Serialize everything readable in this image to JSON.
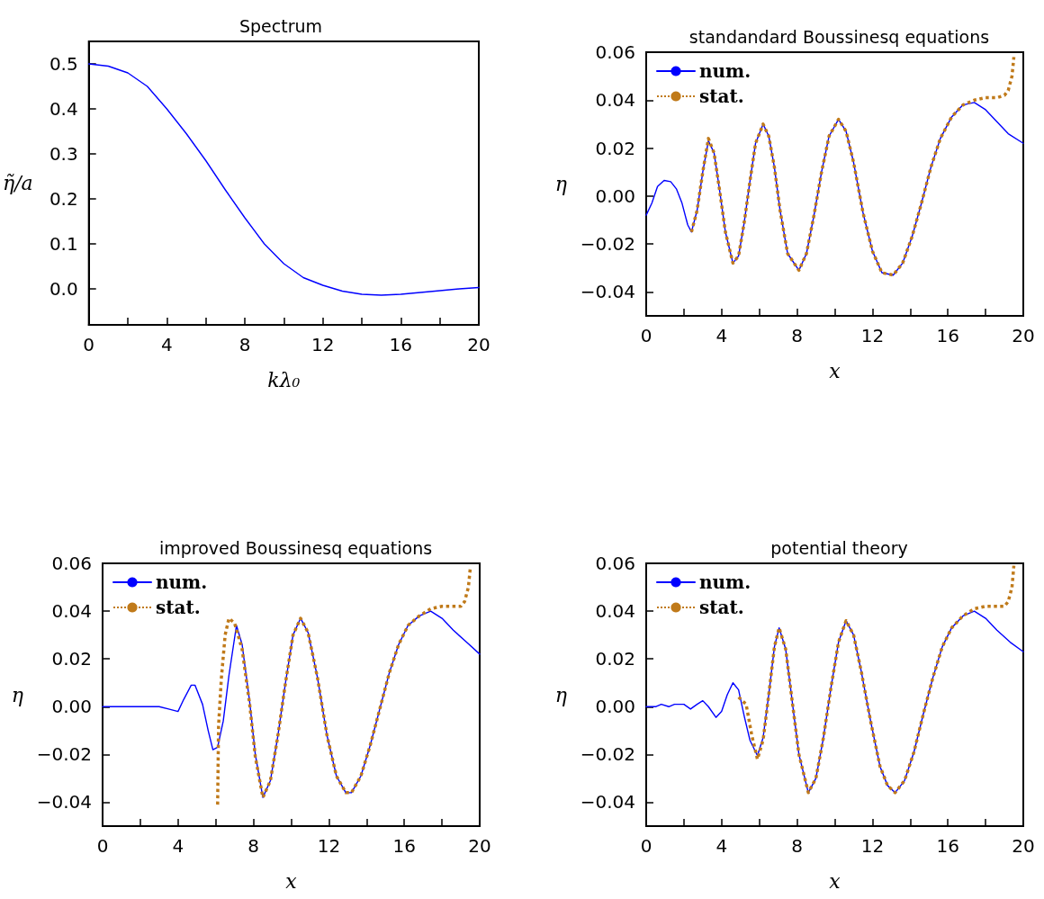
{
  "chart_data": [
    {
      "type": "line",
      "title": "Spectrum",
      "xlabel": "kλ₀",
      "ylabel": "η̃/a",
      "xlim": [
        0,
        20
      ],
      "ylim": [
        -0.08,
        0.55
      ],
      "marker": "none",
      "xticks": [
        0,
        {
          "value": 2,
          "label": null
        },
        4,
        {
          "value": 6,
          "label": null
        },
        8,
        {
          "value": 10,
          "label": null
        },
        12,
        {
          "value": 14,
          "label": null
        },
        16,
        {
          "value": 18,
          "label": null
        },
        20
      ],
      "yticks": [
        {
          "value": 0,
          "label": "0.0"
        },
        0.1,
        0.2,
        0.3,
        0.4,
        0.5
      ],
      "series": [
        {
          "color": "#0000ff",
          "line_style": "solid",
          "x": [
            0,
            1,
            2,
            3,
            4,
            5,
            6,
            7,
            8,
            9,
            10,
            11,
            12,
            13,
            14,
            15,
            16,
            17,
            18,
            19,
            20
          ],
          "values": [
            0.5,
            0.495,
            0.48,
            0.45,
            0.4,
            0.345,
            0.285,
            0.22,
            0.158,
            0.1,
            0.056,
            0.025,
            0.008,
            -0.005,
            -0.012,
            -0.014,
            -0.012,
            -0.008,
            -0.004,
            0,
            0.003
          ]
        }
      ]
    },
    {
      "type": "line",
      "title": "standandard Boussinesq equations",
      "xlabel": "x",
      "ylabel": "η",
      "xlim": [
        0,
        20
      ],
      "ylim": [
        -0.05,
        0.06
      ],
      "legend": "top left",
      "marker": "none",
      "xticks": [
        0,
        {
          "value": 2,
          "label": null
        },
        4,
        {
          "value": 6,
          "label": null
        },
        8,
        {
          "value": 10,
          "label": null
        },
        12,
        {
          "value": 14,
          "label": null
        },
        16,
        {
          "value": 18,
          "label": null
        },
        20
      ],
      "yticks": [
        {
          "value": -0.04,
          "label": "−0.04"
        },
        {
          "value": -0.02,
          "label": "−0.02"
        },
        {
          "value": 0,
          "label": "0.00"
        },
        {
          "value": 0.02,
          "label": "0.02"
        },
        {
          "value": 0.04,
          "label": "0.04"
        },
        {
          "value": 0.06,
          "label": "0.06"
        }
      ],
      "series": [
        {
          "name": "num.",
          "color": "#0000ff",
          "line_style": "solid",
          "x": [
            0,
            0.3,
            0.6,
            0.95,
            1.3,
            1.6,
            1.9,
            2.2,
            2.4,
            2.7,
            3.0,
            3.3,
            3.6,
            3.9,
            4.2,
            4.6,
            4.9,
            5.2,
            5.5,
            5.8,
            6.2,
            6.5,
            6.8,
            7.1,
            7.5,
            8.1,
            8.5,
            8.9,
            9.3,
            9.7,
            10.2,
            10.6,
            11.0,
            11.5,
            12.0,
            12.5,
            13.1,
            13.6,
            14.1,
            14.6,
            15.1,
            15.6,
            16.2,
            16.8,
            17.4,
            18.0,
            18.6,
            19.2,
            20
          ],
          "values": [
            -0.008,
            -0.003,
            0.004,
            0.0065,
            0.006,
            0.003,
            -0.003,
            -0.012,
            -0.015,
            -0.006,
            0.01,
            0.023,
            0.018,
            0.002,
            -0.015,
            -0.028,
            -0.025,
            -0.011,
            0.006,
            0.022,
            0.03,
            0.025,
            0.012,
            -0.006,
            -0.024,
            -0.031,
            -0.024,
            -0.008,
            0.01,
            0.025,
            0.032,
            0.027,
            0.014,
            -0.007,
            -0.023,
            -0.032,
            -0.033,
            -0.028,
            -0.017,
            -0.003,
            0.012,
            0.024,
            0.033,
            0.038,
            0.039,
            0.036,
            0.031,
            0.026,
            0.022
          ]
        },
        {
          "name": "stat.",
          "color": "#c07a1a",
          "line_style": "dotted",
          "x": [
            2.4,
            2.7,
            3.0,
            3.3,
            3.6,
            3.9,
            4.2,
            4.6,
            4.9,
            5.2,
            5.5,
            5.8,
            6.2,
            6.5,
            6.8,
            7.1,
            7.5,
            8.1,
            8.5,
            8.9,
            9.3,
            9.7,
            10.2,
            10.6,
            11.0,
            11.5,
            12.0,
            12.5,
            13.1,
            13.6,
            14.1,
            14.6,
            15.1,
            15.6,
            16.2,
            16.8,
            17.4,
            18.0,
            18.6,
            19.0,
            19.2,
            19.4,
            19.5
          ],
          "values": [
            -0.015,
            -0.006,
            0.01,
            0.024,
            0.018,
            0.002,
            -0.015,
            -0.028,
            -0.025,
            -0.011,
            0.006,
            0.022,
            0.03,
            0.025,
            0.012,
            -0.006,
            -0.024,
            -0.031,
            -0.024,
            -0.008,
            0.01,
            0.025,
            0.032,
            0.027,
            0.014,
            -0.007,
            -0.023,
            -0.032,
            -0.033,
            -0.028,
            -0.017,
            -0.003,
            0.012,
            0.024,
            0.033,
            0.038,
            0.04,
            0.041,
            0.041,
            0.042,
            0.044,
            0.05,
            0.058
          ]
        }
      ]
    },
    {
      "type": "line",
      "title": "improved Boussinesq equations",
      "xlabel": "x",
      "ylabel": "η",
      "xlim": [
        0,
        20
      ],
      "ylim": [
        -0.05,
        0.06
      ],
      "legend": "top left",
      "marker": "none",
      "xticks": [
        0,
        {
          "value": 2,
          "label": null
        },
        4,
        {
          "value": 6,
          "label": null
        },
        8,
        {
          "value": 10,
          "label": null
        },
        12,
        {
          "value": 14,
          "label": null
        },
        16,
        {
          "value": 18,
          "label": null
        },
        20
      ],
      "yticks": [
        {
          "value": -0.04,
          "label": "−0.04"
        },
        {
          "value": -0.02,
          "label": "−0.02"
        },
        {
          "value": 0,
          "label": "0.00"
        },
        {
          "value": 0.02,
          "label": "0.02"
        },
        {
          "value": 0.04,
          "label": "0.04"
        },
        {
          "value": 0.06,
          "label": "0.06"
        }
      ],
      "series": [
        {
          "name": "num.",
          "color": "#0000ff",
          "line_style": "solid",
          "x": [
            0,
            0.5,
            1,
            1.5,
            2,
            2.5,
            3,
            3.5,
            4.0,
            4.3,
            4.7,
            4.9,
            5.3,
            5.6,
            5.85,
            6.1,
            6.4,
            6.7,
            7.1,
            7.4,
            7.8,
            8.1,
            8.5,
            8.9,
            9.3,
            9.7,
            10.1,
            10.5,
            10.9,
            11.4,
            11.9,
            12.4,
            12.9,
            13.2,
            13.7,
            14.2,
            14.7,
            15.2,
            15.7,
            16.2,
            16.8,
            17.4,
            18.0,
            18.6,
            19.3,
            20
          ],
          "values": [
            0,
            0,
            0,
            0,
            0,
            0,
            0,
            -0.001,
            -0.002,
            0.003,
            0.009,
            0.009,
            0.001,
            -0.01,
            -0.018,
            -0.017,
            -0.006,
            0.013,
            0.034,
            0.026,
            0.002,
            -0.02,
            -0.038,
            -0.031,
            -0.012,
            0.01,
            0.03,
            0.037,
            0.031,
            0.012,
            -0.012,
            -0.029,
            -0.036,
            -0.036,
            -0.029,
            -0.016,
            -0.001,
            0.014,
            0.026,
            0.034,
            0.038,
            0.04,
            0.037,
            0.032,
            0.027,
            0.022
          ]
        },
        {
          "name": "stat.",
          "color": "#c07a1a",
          "line_style": "dotted",
          "x": [
            6.1,
            6.15,
            6.3,
            6.5,
            6.7,
            7.0,
            7.4,
            7.8,
            8.1,
            8.5,
            8.9,
            9.3,
            9.7,
            10.1,
            10.5,
            10.9,
            11.4,
            11.9,
            12.4,
            12.9,
            13.2,
            13.7,
            14.2,
            14.7,
            15.2,
            15.7,
            16.2,
            16.8,
            17.4,
            18.0,
            18.6,
            19.0,
            19.2,
            19.4,
            19.5
          ],
          "values": [
            -0.041,
            -0.008,
            0.012,
            0.03,
            0.037,
            0.035,
            0.024,
            0.001,
            -0.021,
            -0.038,
            -0.031,
            -0.012,
            0.01,
            0.03,
            0.037,
            0.031,
            0.012,
            -0.012,
            -0.029,
            -0.036,
            -0.036,
            -0.029,
            -0.016,
            -0.001,
            0.014,
            0.026,
            0.034,
            0.038,
            0.041,
            0.042,
            0.042,
            0.042,
            0.044,
            0.05,
            0.058
          ]
        }
      ]
    },
    {
      "type": "line",
      "title": "potential theory",
      "xlabel": "x",
      "ylabel": "η",
      "xlim": [
        0,
        20
      ],
      "ylim": [
        -0.05,
        0.06
      ],
      "legend": "top left",
      "marker": "none",
      "xticks": [
        0,
        {
          "value": 2,
          "label": null
        },
        4,
        {
          "value": 6,
          "label": null
        },
        8,
        {
          "value": 10,
          "label": null
        },
        12,
        {
          "value": 14,
          "label": null
        },
        16,
        {
          "value": 18,
          "label": null
        },
        20
      ],
      "yticks": [
        {
          "value": -0.04,
          "label": "−0.04"
        },
        {
          "value": -0.02,
          "label": "−0.02"
        },
        {
          "value": 0,
          "label": "0.00"
        },
        {
          "value": 0.02,
          "label": "0.02"
        },
        {
          "value": 0.04,
          "label": "0.04"
        },
        {
          "value": 0.06,
          "label": "0.06"
        }
      ],
      "series": [
        {
          "name": "num.",
          "color": "#0000ff",
          "line_style": "solid",
          "x": [
            0,
            0.5,
            0.8,
            1.2,
            1.5,
            2.0,
            2.35,
            2.7,
            3.0,
            3.3,
            3.7,
            4.0,
            4.3,
            4.6,
            4.9,
            5.2,
            5.5,
            5.9,
            6.2,
            6.5,
            6.8,
            7.05,
            7.4,
            7.7,
            8.1,
            8.6,
            9.0,
            9.4,
            9.8,
            10.2,
            10.6,
            11.0,
            11.4,
            11.9,
            12.4,
            12.8,
            13.2,
            13.7,
            14.2,
            14.7,
            15.2,
            15.7,
            16.2,
            16.8,
            17.4,
            18.0,
            18.6,
            19.3,
            20
          ],
          "values": [
            0,
            0,
            0.001,
            0,
            0.001,
            0.001,
            -0.001,
            0.001,
            0.0025,
            0,
            -0.0045,
            -0.002,
            0.005,
            0.01,
            0.007,
            -0.004,
            -0.014,
            -0.0205,
            -0.013,
            0.005,
            0.025,
            0.033,
            0.024,
            0.005,
            -0.02,
            -0.036,
            -0.03,
            -0.013,
            0.008,
            0.027,
            0.036,
            0.03,
            0.015,
            -0.006,
            -0.025,
            -0.033,
            -0.036,
            -0.031,
            -0.019,
            -0.003,
            0.012,
            0.025,
            0.033,
            0.038,
            0.04,
            0.037,
            0.032,
            0.027,
            0.023
          ]
        },
        {
          "name": "stat.",
          "color": "#c07a1a",
          "line_style": "dotted",
          "x": [
            4.9,
            5.3,
            5.6,
            5.9,
            6.2,
            6.5,
            6.8,
            7.05,
            7.4,
            7.7,
            8.1,
            8.6,
            9.0,
            9.4,
            9.8,
            10.2,
            10.6,
            11.0,
            11.4,
            11.9,
            12.4,
            12.8,
            13.2,
            13.7,
            14.2,
            14.7,
            15.2,
            15.7,
            16.2,
            16.8,
            17.4,
            18.0,
            18.6,
            19.0,
            19.2,
            19.4,
            19.5
          ],
          "values": [
            0.004,
            0.001,
            -0.012,
            -0.022,
            -0.014,
            0.005,
            0.025,
            0.033,
            0.024,
            0.005,
            -0.02,
            -0.036,
            -0.03,
            -0.013,
            0.008,
            0.027,
            0.036,
            0.03,
            0.015,
            -0.006,
            -0.025,
            -0.033,
            -0.036,
            -0.031,
            -0.019,
            -0.003,
            0.012,
            0.025,
            0.033,
            0.038,
            0.041,
            0.042,
            0.042,
            0.042,
            0.044,
            0.05,
            0.059
          ]
        }
      ]
    }
  ]
}
